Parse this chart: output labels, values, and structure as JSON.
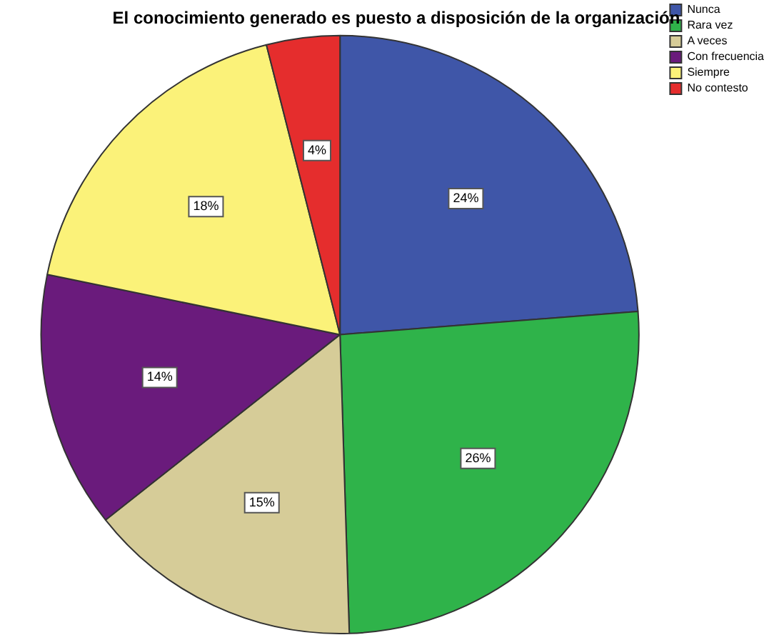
{
  "chart_data": {
    "type": "pie",
    "title": "El conocimiento generado es puesto a disposición de la organización",
    "categories": [
      "Nunca",
      "Rara vez",
      "A veces",
      "Con frecuencia",
      "Siempre",
      "No contesto"
    ],
    "values": [
      24,
      26,
      15,
      14,
      18,
      4
    ],
    "colors": [
      "#3f56a8",
      "#2fb34a",
      "#d6cc98",
      "#6a1b7c",
      "#fbf279",
      "#e52d2d"
    ],
    "value_labels": [
      "24%",
      "26%",
      "15%",
      "14%",
      "18%",
      "4%"
    ],
    "legend": "top right"
  }
}
